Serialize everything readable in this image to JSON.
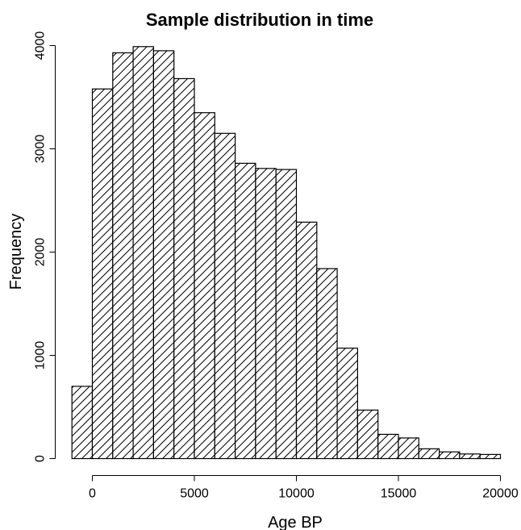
{
  "chart_data": {
    "type": "bar",
    "title": "Sample distribution in time",
    "xlabel": "Age BP",
    "ylabel": "Frequency",
    "hatch": "diagonal",
    "bar_fill": "#ffffff",
    "bar_stroke": "#000000",
    "bin_width": 1000,
    "xlim": [
      -1000,
      20000
    ],
    "ylim": [
      0,
      4000
    ],
    "x_ticks": [
      0,
      5000,
      10000,
      15000,
      20000
    ],
    "y_ticks": [
      0,
      1000,
      2000,
      3000,
      4000
    ],
    "bins": [
      {
        "start": -1000,
        "end": 0,
        "value": 700
      },
      {
        "start": 0,
        "end": 1000,
        "value": 3580
      },
      {
        "start": 1000,
        "end": 2000,
        "value": 3930
      },
      {
        "start": 2000,
        "end": 3000,
        "value": 3990
      },
      {
        "start": 3000,
        "end": 4000,
        "value": 3950
      },
      {
        "start": 4000,
        "end": 5000,
        "value": 3680
      },
      {
        "start": 5000,
        "end": 6000,
        "value": 3350
      },
      {
        "start": 6000,
        "end": 7000,
        "value": 3150
      },
      {
        "start": 7000,
        "end": 8000,
        "value": 2860
      },
      {
        "start": 8000,
        "end": 9000,
        "value": 2810
      },
      {
        "start": 9000,
        "end": 10000,
        "value": 2800
      },
      {
        "start": 10000,
        "end": 11000,
        "value": 2290
      },
      {
        "start": 11000,
        "end": 12000,
        "value": 1840
      },
      {
        "start": 12000,
        "end": 13000,
        "value": 1070
      },
      {
        "start": 13000,
        "end": 14000,
        "value": 470
      },
      {
        "start": 14000,
        "end": 15000,
        "value": 235
      },
      {
        "start": 15000,
        "end": 16000,
        "value": 200
      },
      {
        "start": 16000,
        "end": 17000,
        "value": 95
      },
      {
        "start": 17000,
        "end": 18000,
        "value": 65
      },
      {
        "start": 18000,
        "end": 19000,
        "value": 45
      },
      {
        "start": 19000,
        "end": 20000,
        "value": 40
      }
    ]
  }
}
